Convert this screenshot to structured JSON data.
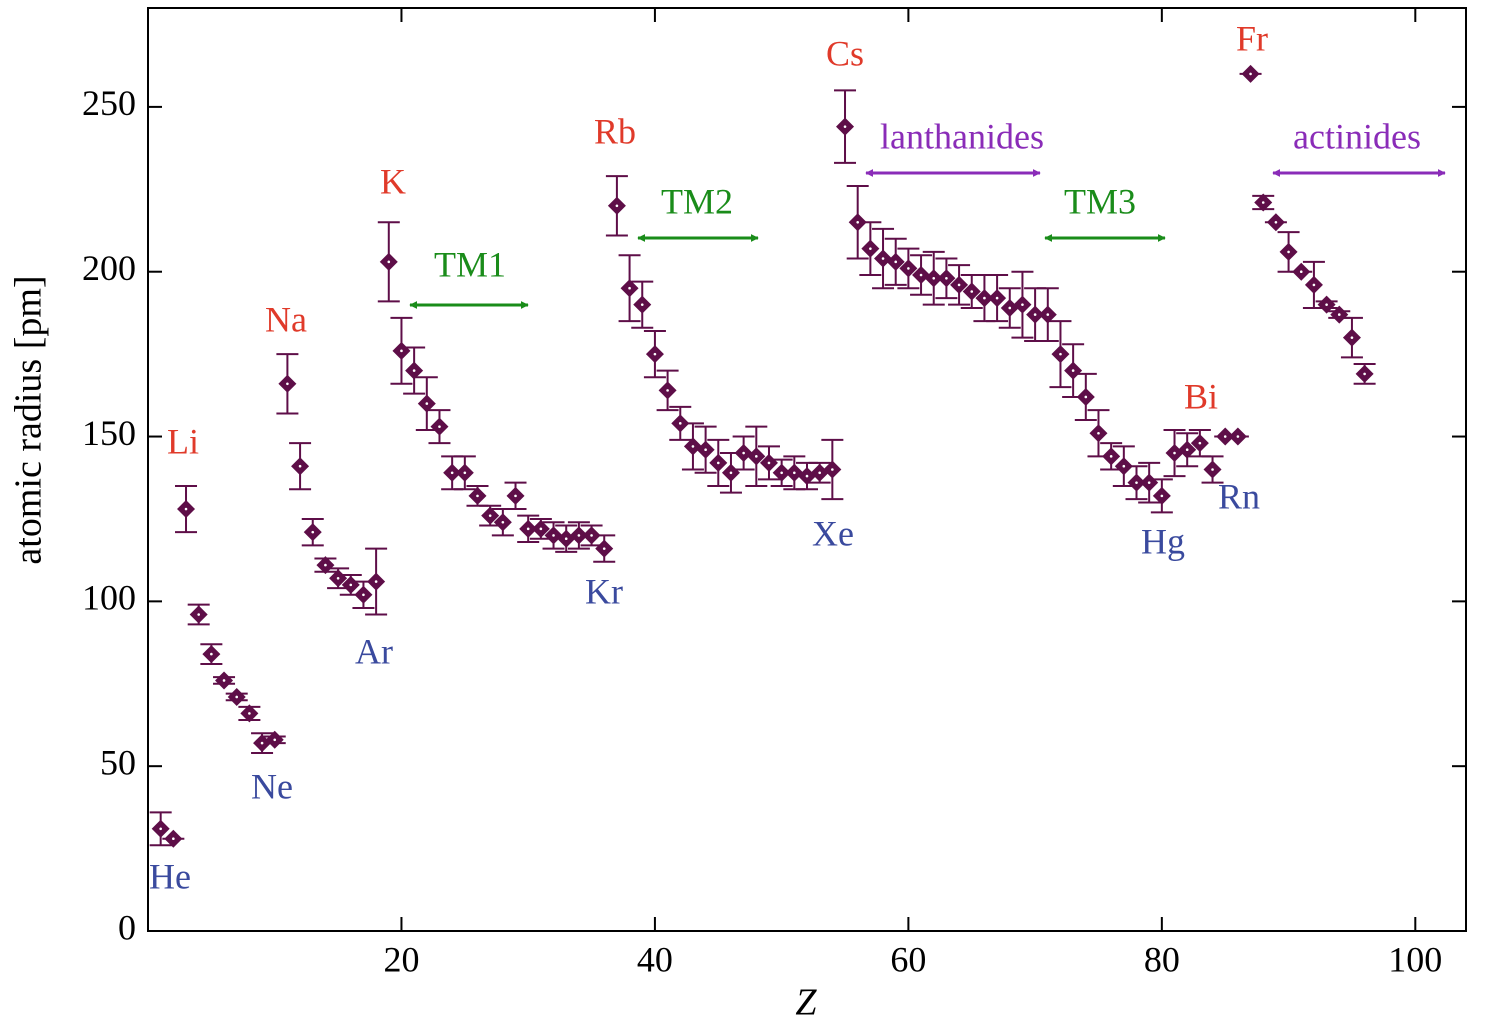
{
  "chart_data": {
    "type": "scatter",
    "x_label": "Z",
    "y_label": "atomic radius [pm]",
    "xlim": [
      0,
      104
    ],
    "ylim": [
      0,
      280
    ],
    "xticks": [
      20,
      40,
      60,
      80,
      100
    ],
    "yticks": [
      0,
      50,
      100,
      150,
      200,
      250
    ],
    "color": "#5e0e48",
    "x": [
      1,
      2,
      3,
      4,
      5,
      6,
      7,
      8,
      9,
      10,
      11,
      12,
      13,
      14,
      15,
      16,
      17,
      18,
      19,
      20,
      21,
      22,
      23,
      24,
      25,
      26,
      27,
      28,
      29,
      30,
      31,
      32,
      33,
      34,
      35,
      36,
      37,
      38,
      39,
      40,
      41,
      42,
      43,
      44,
      45,
      46,
      47,
      48,
      49,
      50,
      51,
      52,
      53,
      54,
      55,
      56,
      57,
      58,
      59,
      60,
      61,
      62,
      63,
      64,
      65,
      66,
      67,
      68,
      69,
      70,
      71,
      72,
      73,
      74,
      75,
      76,
      77,
      78,
      79,
      80,
      81,
      82,
      83,
      84,
      85,
      86,
      87,
      88,
      89,
      90,
      91,
      92,
      93,
      94,
      95,
      96
    ],
    "values": [
      31,
      28,
      128,
      96,
      84,
      76,
      71,
      66,
      57,
      58,
      166,
      141,
      121,
      111,
      107,
      105,
      102,
      106,
      203,
      176,
      170,
      160,
      153,
      139,
      139,
      132,
      126,
      124,
      132,
      122,
      122,
      120,
      119,
      120,
      120,
      116,
      220,
      195,
      190,
      175,
      164,
      154,
      147,
      146,
      142,
      139,
      145,
      144,
      142,
      139,
      139,
      138,
      139,
      140,
      244,
      215,
      207,
      204,
      203,
      201,
      199,
      198,
      198,
      196,
      194,
      192,
      192,
      189,
      190,
      187,
      187,
      175,
      170,
      162,
      151,
      144,
      141,
      136,
      136,
      132,
      145,
      146,
      148,
      140,
      150,
      150,
      260,
      221,
      215,
      206,
      200,
      196,
      190,
      187,
      180,
      169
    ],
    "errors": [
      5,
      0,
      7,
      3,
      3,
      1,
      1,
      2,
      3,
      1,
      9,
      7,
      4,
      2,
      3,
      3,
      4,
      10,
      12,
      10,
      7,
      8,
      5,
      5,
      5,
      3,
      3,
      4,
      4,
      4,
      3,
      4,
      4,
      4,
      3,
      4,
      9,
      10,
      7,
      7,
      6,
      5,
      7,
      7,
      7,
      6,
      5,
      9,
      5,
      4,
      5,
      4,
      3,
      9,
      11,
      11,
      8,
      9,
      7,
      6,
      6,
      8,
      6,
      6,
      5,
      7,
      7,
      6,
      10,
      8,
      8,
      10,
      8,
      7,
      7,
      4,
      6,
      5,
      6,
      5,
      7,
      5,
      4,
      4,
      0,
      0,
      0,
      2,
      0,
      6,
      0,
      7,
      1,
      1,
      6,
      3
    ],
    "annotations": [
      {
        "text": "He",
        "color": "#3a4a9e"
      },
      {
        "text": "Li",
        "color": "#e03a2a"
      },
      {
        "text": "Ne",
        "color": "#3a4a9e"
      },
      {
        "text": "Na",
        "color": "#e03a2a"
      },
      {
        "text": "Ar",
        "color": "#3a4a9e"
      },
      {
        "text": "K",
        "color": "#e03a2a"
      },
      {
        "text": "TM1",
        "color": "#1a8c1a"
      },
      {
        "text": "Kr",
        "color": "#3a4a9e"
      },
      {
        "text": "Rb",
        "color": "#e03a2a"
      },
      {
        "text": "TM2",
        "color": "#1a8c1a"
      },
      {
        "text": "Xe",
        "color": "#3a4a9e"
      },
      {
        "text": "Cs",
        "color": "#e03a2a"
      },
      {
        "text": "lanthanides",
        "color": "#8a2cb8"
      },
      {
        "text": "TM3",
        "color": "#1a8c1a"
      },
      {
        "text": "Hg",
        "color": "#3a4a9e"
      },
      {
        "text": "Bi",
        "color": "#e03a2a"
      },
      {
        "text": "Rn",
        "color": "#3a4a9e"
      },
      {
        "text": "Fr",
        "color": "#e03a2a"
      },
      {
        "text": "actinides",
        "color": "#8a2cb8"
      }
    ]
  }
}
